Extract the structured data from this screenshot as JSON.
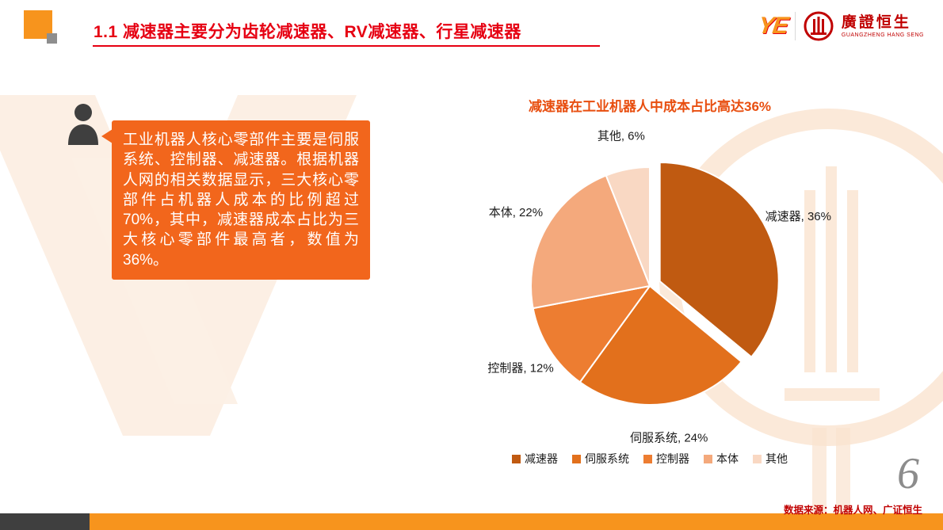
{
  "header": {
    "title": "1.1 减速器主要分为齿轮减速器、RV减速器、行星减速器",
    "logo": {
      "monogram": "YE",
      "brand_cn": "廣證恒生",
      "brand_en": "GUANGZHENG HANG SENG"
    }
  },
  "callout": {
    "text": "工业机器人核心零部件主要是伺服系统、控制器、减速器。根据机器人网的相关数据显示，三大核心零部件占机器人成本的比例超过70%，其中，减速器成本占比为三大核心零部件最高者，数值为36%。"
  },
  "chart_data": {
    "type": "pie",
    "title": "减速器在工业机器人中成本占比高达36%",
    "labels": [
      "减速器",
      "伺服系统",
      "控制器",
      "本体",
      "其他"
    ],
    "slugs": [
      "jiansuqi",
      "sifu-xitong",
      "kongzhiqi",
      "benti",
      "qita"
    ],
    "values": [
      36,
      24,
      12,
      22,
      6
    ],
    "unit": "%",
    "colors": [
      "#C05A11",
      "#E2701C",
      "#ED7D31",
      "#F4A97C",
      "#F9D8C3"
    ],
    "exploded_index": 0,
    "start_angle_deg": 0,
    "direction": "clockwise",
    "legend_position": "bottom",
    "data_label_format": "name, value%"
  },
  "footer": {
    "source": "数据来源：机器人网、广证恒生",
    "page_number": "6"
  },
  "colors": {
    "title_red": "#E60012",
    "chart_title_orange": "#E84E0F",
    "bubble_orange": "#F2661C",
    "brand_red": "#C00000",
    "footer_bar_orange": "#F7941D",
    "footer_bar_dark": "#3F3F3F",
    "page_number_gray": "#8C8C8C",
    "deco_square_orange": "#F7941D",
    "deco_square_gray": "#8E8E8E",
    "watermark_light_orange": "#FAE3CF"
  }
}
